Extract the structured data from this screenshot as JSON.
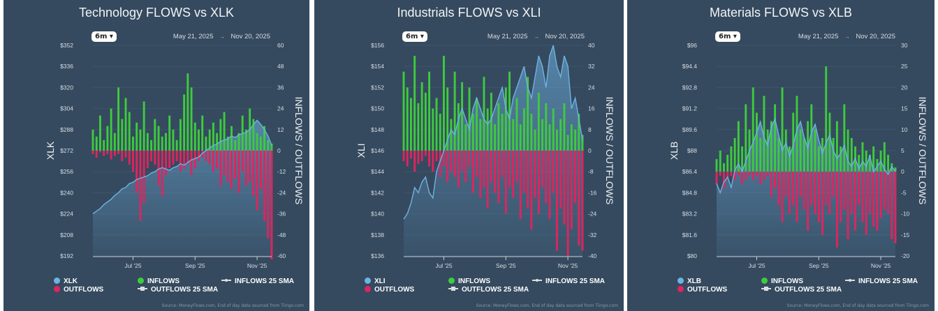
{
  "common": {
    "range_button": "6m",
    "date_start": "May 21, 2025",
    "date_arrow": "→",
    "date_end": "Nov 20, 2025",
    "right_axis_title": "INFLOWS / OUTFLOWS",
    "x_ticks": [
      "Jul '25",
      "Sep '25",
      "Nov '25"
    ],
    "legend": {
      "inflows": "INFLOWS",
      "outflows": "OUTFLOWS",
      "inflows_sma": "INFLOWS 25 SMA",
      "outflows_sma": "OUTFLOWS 25 SMA"
    },
    "source": "Source: MoneyFlows.com, End of day data sourced from Tiingo.com",
    "colors": {
      "background": "#354a5f",
      "price": "#6fb3e3",
      "inflows": "#3ecb3e",
      "outflows": "#e0245e"
    }
  },
  "chart_data": [
    {
      "type": "bar+area",
      "title": "Technology FLOWS vs XLK",
      "ylabel": "XLK",
      "y2label": "INFLOWS / OUTFLOWS",
      "price_ticks": [
        "$352",
        "$336",
        "$320",
        "$304",
        "$288",
        "$272",
        "$256",
        "$240",
        "$224",
        "$208",
        "$192"
      ],
      "price_ylim": [
        192,
        352
      ],
      "flow_ticks": [
        "60",
        "48",
        "36",
        "24",
        "12",
        "0",
        "-12",
        "-24",
        "-36",
        "-48",
        "-60"
      ],
      "flow_ylim": [
        -60,
        60
      ],
      "series": [
        {
          "name": "XLK",
          "values": [
            224,
            226,
            228,
            231,
            233,
            235,
            238,
            240,
            243,
            244,
            247,
            248,
            250,
            251,
            252,
            253,
            255,
            256,
            258,
            259,
            258,
            257,
            259,
            260,
            262,
            261,
            263,
            265,
            266,
            267,
            270,
            272,
            274,
            276,
            277,
            279,
            280,
            281,
            283,
            282,
            284,
            285,
            286,
            288,
            292,
            295,
            292,
            288,
            283,
            276
          ]
        },
        {
          "name": "INFLOWS",
          "values": [
            12,
            8,
            20,
            6,
            14,
            24,
            10,
            36,
            18,
            30,
            22,
            8,
            16,
            12,
            28,
            10,
            6,
            18,
            14,
            8,
            10,
            20,
            12,
            6,
            18,
            32,
            44,
            36,
            16,
            12,
            20,
            8,
            12,
            16,
            10,
            18,
            22,
            8,
            14,
            6,
            10,
            20,
            12,
            24,
            18,
            10,
            8,
            14,
            6,
            4
          ]
        },
        {
          "name": "OUTFLOWS",
          "values": [
            -2,
            -4,
            -1,
            -3,
            -2,
            -5,
            -3,
            -2,
            -6,
            -4,
            -8,
            -12,
            -24,
            -40,
            -30,
            -10,
            -6,
            -8,
            -20,
            -26,
            -14,
            -10,
            -8,
            -6,
            -12,
            -10,
            -8,
            -14,
            -10,
            -6,
            -4,
            -6,
            -8,
            -12,
            -10,
            -20,
            -14,
            -18,
            -22,
            -16,
            -24,
            -12,
            -20,
            -18,
            -26,
            -34,
            -22,
            -40,
            -50,
            -62
          ]
        }
      ]
    },
    {
      "type": "bar+area",
      "title": "Industrials FLOWS vs XLI",
      "ylabel": "XLI",
      "y2label": "INFLOWS / OUTFLOWS",
      "price_ticks": [
        "$156",
        "$154",
        "$152",
        "$150",
        "$148",
        "$146",
        "$144",
        "$142",
        "$140",
        "$138",
        "$136"
      ],
      "price_ylim": [
        136,
        156
      ],
      "flow_ticks": [
        "40",
        "32",
        "24",
        "16",
        "8",
        "0",
        "-8",
        "-16",
        "-24",
        "-32",
        "-40"
      ],
      "flow_ylim": [
        -40,
        40
      ],
      "series": [
        {
          "name": "XLI",
          "values": [
            139.5,
            140,
            141,
            142.5,
            142,
            143,
            143.5,
            142,
            141.5,
            144,
            145,
            146,
            147,
            148,
            147.5,
            149,
            150,
            149,
            148,
            150,
            151,
            150,
            149,
            148.5,
            149,
            150,
            151,
            152,
            150,
            149,
            151,
            152,
            153,
            154,
            152,
            151,
            153,
            155,
            154,
            152,
            155,
            156,
            154,
            153,
            155,
            154,
            150,
            151,
            149,
            147
          ]
        },
        {
          "name": "INFLOWS",
          "values": [
            30,
            24,
            20,
            36,
            18,
            26,
            22,
            30,
            16,
            20,
            14,
            36,
            24,
            12,
            30,
            18,
            26,
            10,
            24,
            14,
            20,
            12,
            28,
            16,
            22,
            10,
            18,
            14,
            24,
            30,
            12,
            20,
            10,
            16,
            28,
            14,
            8,
            22,
            12,
            18,
            10,
            16,
            8,
            12,
            18,
            6,
            10,
            8,
            14,
            6
          ]
        },
        {
          "name": "OUTFLOWS",
          "values": [
            -4,
            -6,
            -3,
            -8,
            -5,
            -4,
            -2,
            -6,
            -8,
            -4,
            -10,
            -6,
            -12,
            -8,
            -10,
            -14,
            -8,
            -12,
            -6,
            -16,
            -10,
            -18,
            -14,
            -22,
            -12,
            -16,
            -20,
            -10,
            -24,
            -14,
            -18,
            -12,
            -26,
            -16,
            -22,
            -30,
            -18,
            -24,
            -14,
            -20,
            -26,
            -16,
            -38,
            -22,
            -28,
            -40,
            -30,
            -20,
            -36,
            -38
          ]
        }
      ]
    },
    {
      "type": "bar+area",
      "title": "Materials FLOWS vs XLB",
      "ylabel": "XLB",
      "y2label": "INFLOWS / OUTFLOWS",
      "price_ticks": [
        "$96",
        "$94.4",
        "$92.8",
        "$91.2",
        "$89.6",
        "$88",
        "$86.4",
        "$84.8",
        "$83.2",
        "$81.6",
        "$80"
      ],
      "price_ylim": [
        80,
        96
      ],
      "flow_ticks": [
        "30",
        "25",
        "20",
        "15",
        "10",
        "5",
        "0",
        "-5",
        "-10",
        "-15",
        "-20"
      ],
      "flow_ylim": [
        -20,
        30
      ],
      "series": [
        {
          "name": "XLB",
          "values": [
            85.5,
            84.8,
            85.6,
            86,
            85.2,
            86.5,
            87,
            86.4,
            87.2,
            88,
            88.6,
            89.4,
            90.2,
            89,
            88.4,
            89.8,
            90.4,
            89.2,
            88,
            88.6,
            87.6,
            88.4,
            89.6,
            90.2,
            89,
            88.2,
            89.4,
            90,
            88.8,
            87.8,
            88.6,
            89.2,
            88,
            87.4,
            87.8,
            88.4,
            87.2,
            86.8,
            87.4,
            86.6,
            87.2,
            86.8,
            87.6,
            86.4,
            86.8,
            87.2,
            86.6,
            86.2,
            86.8,
            86.4
          ]
        },
        {
          "name": "INFLOWS",
          "values": [
            3,
            5,
            2,
            4,
            6,
            8,
            12,
            6,
            16,
            10,
            20,
            14,
            8,
            18,
            10,
            12,
            16,
            8,
            20,
            10,
            6,
            14,
            18,
            10,
            8,
            12,
            16,
            10,
            6,
            8,
            25,
            14,
            8,
            12,
            6,
            16,
            10,
            8,
            6,
            4,
            7,
            5,
            4,
            6,
            3,
            5,
            7,
            4,
            2,
            1
          ]
        },
        {
          "name": "OUTFLOWS",
          "values": [
            -3,
            -1,
            -4,
            -2,
            -1,
            -2,
            -1,
            -3,
            -2,
            -1,
            -2,
            -1,
            -3,
            -2,
            -1,
            -6,
            -4,
            -8,
            -12,
            -6,
            -10,
            -8,
            -12,
            -6,
            -9,
            -14,
            -8,
            -10,
            -12,
            -15,
            -8,
            -10,
            -6,
            -18,
            -12,
            -9,
            -16,
            -10,
            -14,
            -8,
            -12,
            -15,
            -10,
            -13,
            -14,
            -11,
            -9,
            -10,
            -16,
            -17
          ]
        }
      ]
    }
  ]
}
